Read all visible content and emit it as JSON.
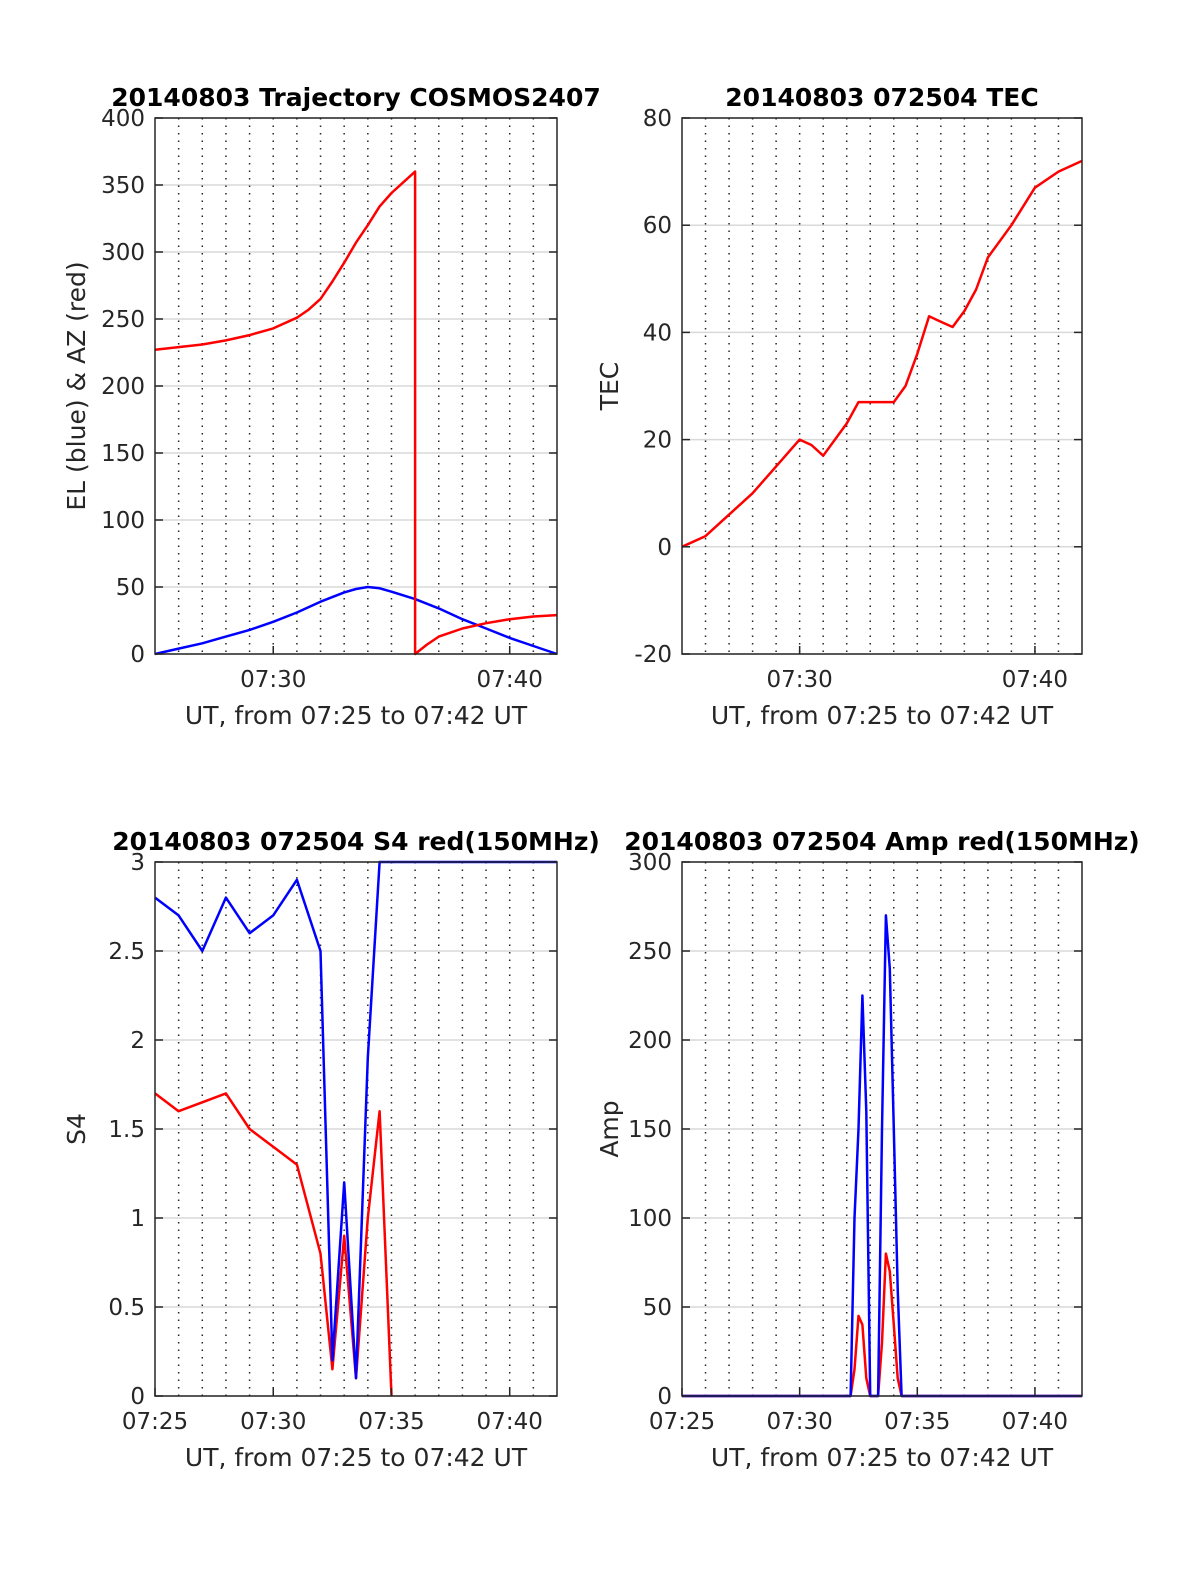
{
  "colors": {
    "el": "#0000ff",
    "az": "#ff0000",
    "red": "#ff0000",
    "blue": "#0000ff",
    "grid": "#d9d9d9",
    "vgrid": "#262626",
    "axis": "#262626"
  },
  "chart_data": [
    {
      "type": "line",
      "title": "20140803 Trajectory COSMOS2407",
      "xlabel": "UT, from 07:25 to 07:42 UT",
      "ylabel": "EL (blue) & AZ (red)",
      "xlim": [
        "07:25",
        "07:42"
      ],
      "ylim": [
        0,
        400
      ],
      "yticks": [
        0,
        50,
        100,
        150,
        200,
        250,
        300,
        350,
        400
      ],
      "xtick_labels": [
        "07:30",
        "07:40"
      ],
      "grid": "horizontal solid, vertical dotted",
      "series": [
        {
          "name": "EL",
          "color": "blue",
          "x": [
            "07:25",
            "07:26",
            "07:27",
            "07:28",
            "07:29",
            "07:30",
            "07:31",
            "07:32",
            "07:33",
            "07:33:30",
            "07:34",
            "07:34:30",
            "07:35",
            "07:36",
            "07:37",
            "07:38",
            "07:39",
            "07:40",
            "07:41",
            "07:42"
          ],
          "values": [
            0,
            4,
            8,
            13,
            18,
            24,
            31,
            39,
            46,
            48.5,
            50,
            49,
            46.5,
            41,
            34,
            26,
            19,
            12,
            6,
            0
          ]
        },
        {
          "name": "AZ",
          "color": "red",
          "x": [
            "07:25",
            "07:26",
            "07:27",
            "07:28",
            "07:29",
            "07:30",
            "07:31",
            "07:31:30",
            "07:32",
            "07:32:30",
            "07:33",
            "07:33:30",
            "07:34",
            "07:34:30",
            "07:35",
            "07:35:30",
            "07:36",
            "07:36:00",
            "07:36:30",
            "07:37",
            "07:38",
            "07:39",
            "07:40",
            "07:41",
            "07:42"
          ],
          "values": [
            227,
            229,
            231,
            234,
            238,
            243,
            251,
            257,
            265,
            278,
            292,
            307,
            320,
            334,
            344,
            352,
            360,
            0,
            7,
            13,
            19,
            23,
            26,
            28,
            29
          ]
        }
      ]
    },
    {
      "type": "line",
      "title": "20140803 072504 TEC",
      "xlabel": "UT, from 07:25 to 07:42 UT",
      "ylabel": "TEC",
      "xlim": [
        "07:25",
        "07:42"
      ],
      "ylim": [
        -20,
        80
      ],
      "yticks": [
        -20,
        0,
        20,
        40,
        60,
        80
      ],
      "xtick_labels": [
        "07:30",
        "07:40"
      ],
      "series": [
        {
          "name": "TEC",
          "color": "red",
          "x": [
            "07:25",
            "07:26",
            "07:27",
            "07:28",
            "07:29",
            "07:30",
            "07:30:30",
            "07:31",
            "07:32",
            "07:32:30",
            "07:33",
            "07:34",
            "07:34:30",
            "07:35",
            "07:35:30",
            "07:36",
            "07:36:30",
            "07:37",
            "07:37:30",
            "07:38",
            "07:39",
            "07:40",
            "07:41",
            "07:42"
          ],
          "values": [
            0,
            2,
            6,
            10,
            15,
            20,
            19,
            17,
            23,
            27,
            27,
            27,
            30,
            36,
            43,
            42,
            41,
            44,
            48,
            54,
            60,
            67,
            70,
            72
          ]
        }
      ]
    },
    {
      "type": "line",
      "title": "20140803 072504 S4 red(150MHz)",
      "xlabel": "UT, from 07:25 to 07:42 UT",
      "ylabel": "S4",
      "xlim": [
        "07:25",
        "07:42"
      ],
      "ylim": [
        0,
        3
      ],
      "yticks": [
        0,
        0.5,
        1,
        1.5,
        2,
        2.5,
        3
      ],
      "xtick_labels": [
        "07:25",
        "07:30",
        "07:35",
        "07:40"
      ],
      "series": [
        {
          "name": "S4 red",
          "color": "red",
          "x": [
            "07:25",
            "07:26",
            "07:27",
            "07:28",
            "07:29",
            "07:30",
            "07:31",
            "07:32",
            "07:32:30",
            "07:33",
            "07:33:30",
            "07:34",
            "07:34:30",
            "07:35"
          ],
          "values": [
            1.7,
            1.6,
            1.65,
            1.7,
            1.5,
            1.4,
            1.3,
            0.8,
            0.15,
            0.9,
            0.1,
            1.0,
            1.6,
            0
          ]
        },
        {
          "name": "S4 blue",
          "color": "blue",
          "x": [
            "07:25",
            "07:26",
            "07:27",
            "07:28",
            "07:29",
            "07:30",
            "07:31",
            "07:32",
            "07:32:30",
            "07:33",
            "07:33:30",
            "07:34",
            "07:34:30",
            "07:35",
            "07:40",
            "07:42"
          ],
          "values": [
            2.8,
            2.7,
            2.5,
            2.8,
            2.6,
            2.7,
            2.9,
            2.5,
            0.2,
            1.2,
            0.1,
            1.9,
            3,
            3,
            3,
            3
          ]
        }
      ]
    },
    {
      "type": "line",
      "title": "20140803 072504 Amp red(150MHz)",
      "xlabel": "UT, from 07:25 to 07:42 UT",
      "ylabel": "Amp",
      "xlim": [
        "07:25",
        "07:42"
      ],
      "ylim": [
        0,
        300
      ],
      "yticks": [
        0,
        50,
        100,
        150,
        200,
        250,
        300
      ],
      "xtick_labels": [
        "07:25",
        "07:30",
        "07:35",
        "07:40"
      ],
      "series": [
        {
          "name": "Amp red",
          "color": "red",
          "x": [
            "07:25",
            "07:32:10",
            "07:32:20",
            "07:32:30",
            "07:32:40",
            "07:32:50",
            "07:33:00",
            "07:33:20",
            "07:33:30",
            "07:33:40",
            "07:33:50",
            "07:34:00",
            "07:34:10",
            "07:34:20",
            "07:42"
          ],
          "values": [
            0,
            0,
            15,
            45,
            40,
            10,
            0,
            0,
            30,
            80,
            70,
            40,
            10,
            0,
            0
          ]
        },
        {
          "name": "Amp blue",
          "color": "blue",
          "x": [
            "07:25",
            "07:32:10",
            "07:32:20",
            "07:32:30",
            "07:32:40",
            "07:32:50",
            "07:33:00",
            "07:33:20",
            "07:33:30",
            "07:33:40",
            "07:33:50",
            "07:34:00",
            "07:34:10",
            "07:34:20",
            "07:42"
          ],
          "values": [
            0,
            0,
            100,
            150,
            225,
            160,
            0,
            0,
            150,
            270,
            240,
            150,
            60,
            0,
            0
          ]
        }
      ]
    }
  ]
}
